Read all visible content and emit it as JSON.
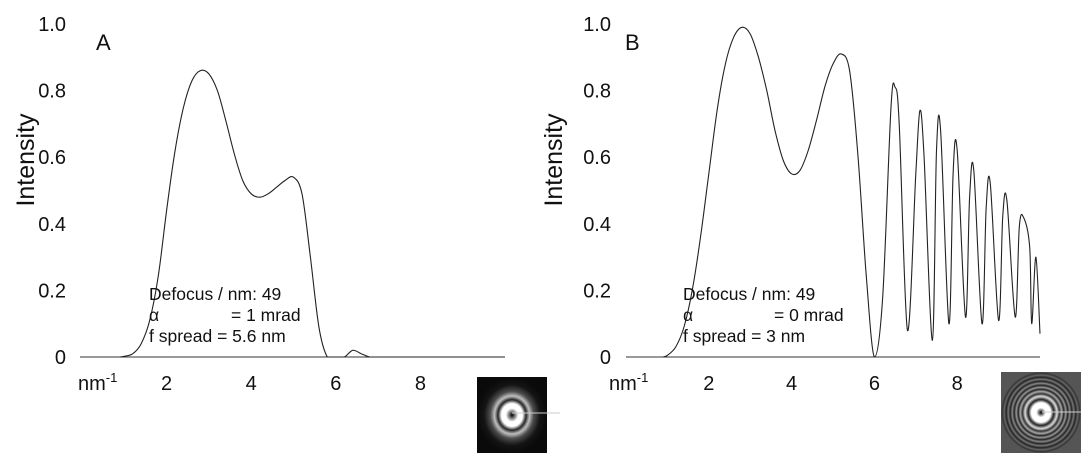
{
  "chart_data": [
    {
      "type": "line",
      "panel_label": "A",
      "ylabel": "Intensity",
      "x_unit_label": "nm",
      "x_unit_exponent": "-1",
      "xlim": [
        0,
        10
      ],
      "ylim": [
        0,
        1.0
      ],
      "xticks": [
        2,
        4,
        6,
        8
      ],
      "yticks": [
        {
          "value": 0,
          "label": "0"
        },
        {
          "value": 0.2,
          "label": "0.2"
        },
        {
          "value": 0.4,
          "label": "0.4"
        },
        {
          "value": 0.6,
          "label": "0.6"
        },
        {
          "value": 0.8,
          "label": "0.8"
        },
        {
          "value": 1.0,
          "label": "1.0"
        }
      ],
      "annotations": [
        "Defocus / nm: 49",
        "α",
        "= 1 mrad",
        "f spread = 5.6 nm"
      ],
      "x": [
        0.9,
        1.0,
        1.2,
        1.4,
        1.6,
        1.8,
        2.0,
        2.2,
        2.4,
        2.6,
        2.8,
        3.0,
        3.2,
        3.4,
        3.6,
        3.8,
        4.0,
        4.2,
        4.4,
        4.6,
        4.8,
        5.0,
        5.2,
        5.4,
        5.6,
        5.8,
        6.0,
        6.2,
        6.4,
        6.6,
        6.8,
        7.0,
        10.0
      ],
      "y": [
        0.0,
        0.002,
        0.01,
        0.04,
        0.11,
        0.24,
        0.44,
        0.62,
        0.75,
        0.83,
        0.86,
        0.85,
        0.8,
        0.71,
        0.61,
        0.53,
        0.49,
        0.48,
        0.49,
        0.51,
        0.53,
        0.54,
        0.49,
        0.3,
        0.09,
        0.0,
        0.0,
        0.0,
        0.02,
        0.01,
        0.0,
        0.0,
        0.0
      ]
    },
    {
      "type": "line",
      "panel_label": "B",
      "ylabel": "Intensity",
      "x_unit_label": "nm",
      "x_unit_exponent": "-1",
      "xlim": [
        0,
        10
      ],
      "ylim": [
        0,
        1.0
      ],
      "xticks": [
        2,
        4,
        6,
        8
      ],
      "yticks": [
        {
          "value": 0,
          "label": "0"
        },
        {
          "value": 0.2,
          "label": "0.2"
        },
        {
          "value": 0.4,
          "label": "0.4"
        },
        {
          "value": 0.6,
          "label": "0.6"
        },
        {
          "value": 0.8,
          "label": "0.8"
        },
        {
          "value": 1.0,
          "label": "1.0"
        }
      ],
      "annotations": [
        "Defocus / nm: 49",
        "α",
        "= 0 mrad",
        "f spread = 3 nm"
      ],
      "x": [
        0.9,
        1.0,
        1.2,
        1.4,
        1.6,
        1.8,
        2.0,
        2.2,
        2.4,
        2.6,
        2.8,
        3.0,
        3.2,
        3.4,
        3.6,
        3.8,
        4.0,
        4.2,
        4.4,
        4.6,
        4.8,
        5.0,
        5.2,
        5.4,
        5.6,
        5.8,
        6.0,
        6.2,
        6.4,
        6.5,
        6.6,
        6.8,
        7.0,
        7.1,
        7.2,
        7.4,
        7.5,
        7.6,
        7.8,
        7.9,
        8.0,
        8.2,
        8.3,
        8.4,
        8.6,
        8.7,
        8.8,
        9.0,
        9.1,
        9.2,
        9.4,
        9.5,
        9.6,
        9.75,
        9.8,
        9.9,
        10.0
      ],
      "y": [
        0.0,
        0.005,
        0.03,
        0.09,
        0.2,
        0.36,
        0.55,
        0.74,
        0.88,
        0.96,
        0.99,
        0.97,
        0.9,
        0.8,
        0.68,
        0.59,
        0.55,
        0.56,
        0.62,
        0.71,
        0.81,
        0.88,
        0.91,
        0.86,
        0.61,
        0.25,
        0.0,
        0.18,
        0.75,
        0.81,
        0.7,
        0.08,
        0.55,
        0.74,
        0.6,
        0.05,
        0.62,
        0.68,
        0.1,
        0.55,
        0.62,
        0.12,
        0.48,
        0.56,
        0.1,
        0.45,
        0.52,
        0.11,
        0.42,
        0.47,
        0.12,
        0.39,
        0.42,
        0.33,
        0.1,
        0.3,
        0.07
      ]
    }
  ]
}
